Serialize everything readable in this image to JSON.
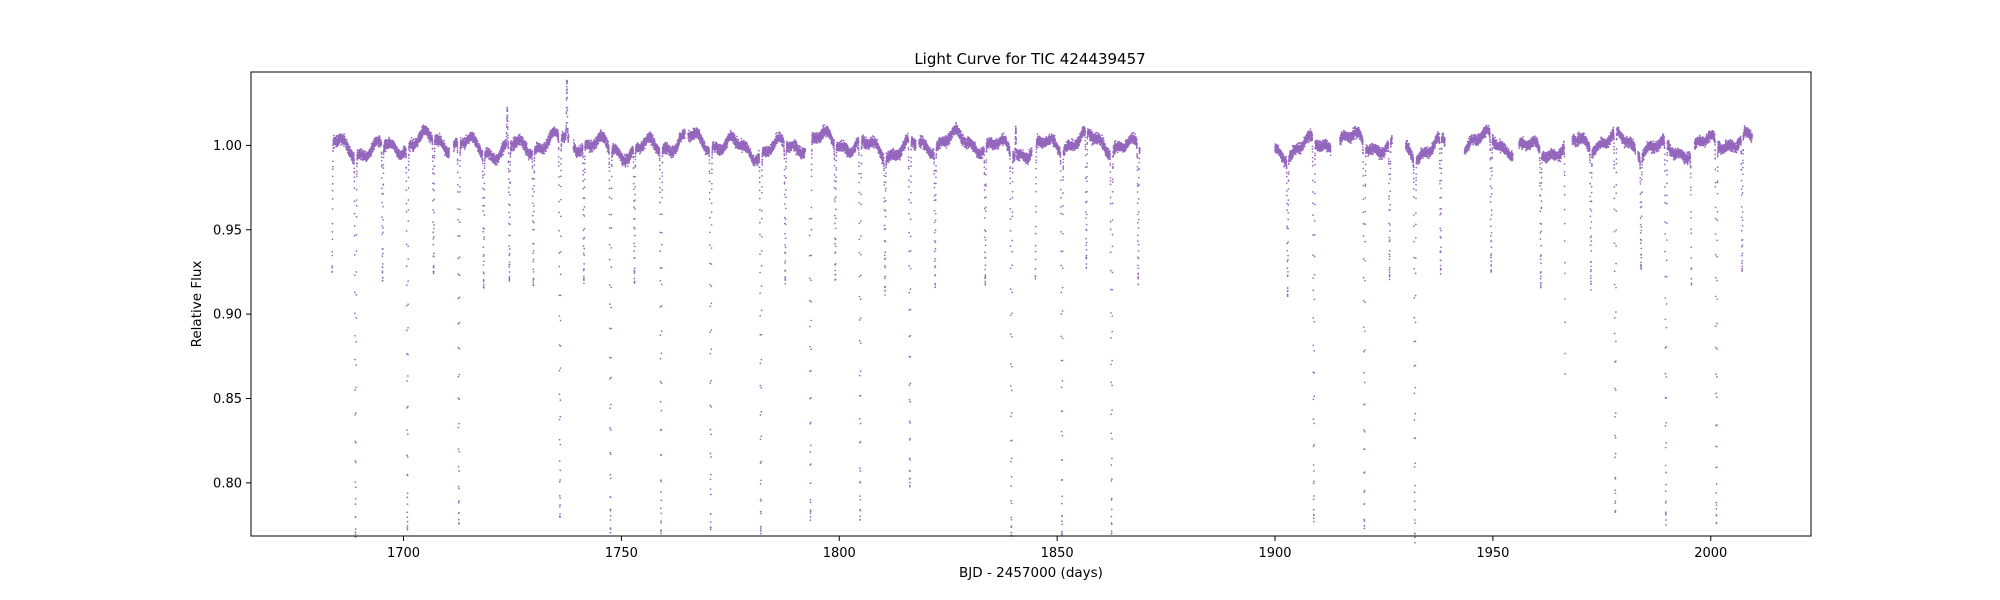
{
  "chart_data": {
    "type": "scatter",
    "title": "Light Curve for TIC 424439457",
    "xlabel": "BJD - 2457000 (days)",
    "ylabel": "Relative Flux",
    "xlim": [
      1665,
      2023
    ],
    "ylim": [
      0.7685,
      1.0435
    ],
    "xticks": [
      1700,
      1750,
      1800,
      1850,
      1900,
      1950,
      2000
    ],
    "yticks": [
      0.8,
      0.85,
      0.9,
      0.95,
      1.0
    ],
    "ytick_labels": [
      "0.80",
      "0.85",
      "0.90",
      "0.95",
      "1.00"
    ],
    "grid": false,
    "legend": "none",
    "marker_color": "#9467bd",
    "coverage": [
      [
        1683.6,
        1710.5
      ],
      [
        1711.5,
        1737.9
      ],
      [
        1739.0,
        1764.6
      ],
      [
        1765.3,
        1792.2
      ],
      [
        1793.2,
        1817.6
      ],
      [
        1818.3,
        1844.2
      ],
      [
        1845.0,
        1869.0
      ],
      [
        1900.0,
        1912.8
      ],
      [
        1914.9,
        1926.9
      ],
      [
        1930.0,
        1939.0
      ],
      [
        1943.5,
        1954.6
      ],
      [
        1956.0,
        1966.6
      ],
      [
        1968.2,
        1982.7
      ],
      [
        1983.3,
        1995.6
      ],
      [
        1996.3,
        2009.5
      ]
    ],
    "baseline_flux": 1.0,
    "eclipses_primary": {
      "depth_flux": 0.774,
      "times": [
        1689.0,
        1700.9,
        1712.7,
        1735.9,
        1747.5,
        1759.1,
        1770.5,
        1782.0,
        1793.4,
        1804.8,
        1816.2,
        1839.5,
        1851.1,
        1862.5,
        1908.9,
        1920.5,
        1932.1,
        1966.7,
        1978.1,
        1989.7,
        2001.3
      ]
    },
    "eclipses_secondary": {
      "depth_flux": 0.92,
      "times": [
        1683.6,
        1695.2,
        1706.9,
        1718.4,
        1724.3,
        1729.8,
        1741.4,
        1753.0,
        1787.6,
        1799.1,
        1810.5,
        1822.0,
        1833.5,
        1845.0,
        1856.7,
        1868.6,
        1902.9,
        1926.3,
        1938.0,
        1949.6,
        1961.0,
        1972.5,
        1984.0,
        1995.6,
        2007.2
      ]
    },
    "flares": [
      [
        1723.8,
        1.02
      ],
      [
        1737.5,
        1.033
      ],
      [
        1816.2,
        1.019
      ],
      [
        1840.5,
        1.017
      ],
      [
        1984.0,
        1.015
      ]
    ]
  }
}
